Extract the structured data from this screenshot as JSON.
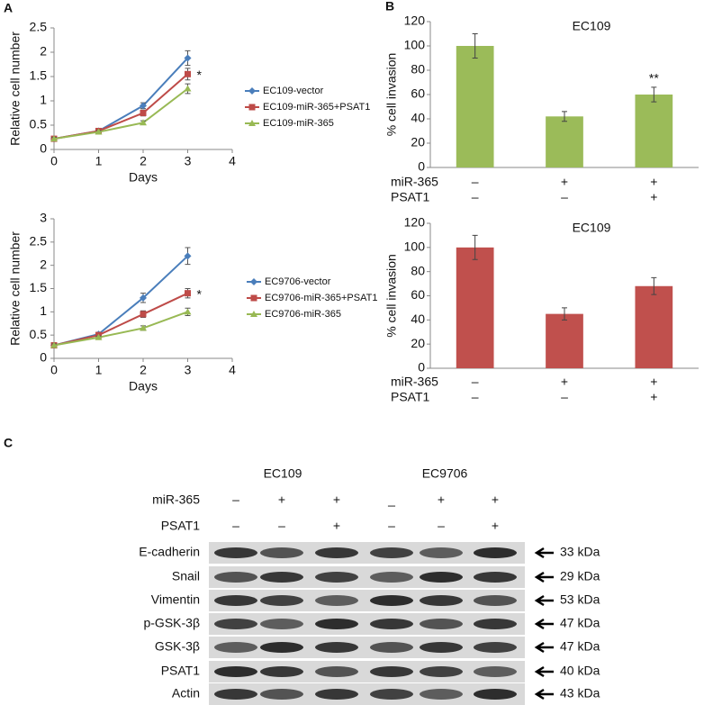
{
  "panel_labels": [
    "A",
    "B",
    "C"
  ],
  "chart_data": [
    {
      "type": "line",
      "x_label": "Days",
      "y_label": "Relative cell number",
      "annotations": [
        "*"
      ],
      "x": [
        0,
        1,
        2,
        3
      ],
      "xlim": [
        0,
        4
      ],
      "xticks": [
        0,
        1,
        2,
        3,
        4
      ],
      "ylim": [
        0,
        2.5
      ],
      "yticks": [
        0,
        0.5,
        1,
        1.5,
        2,
        2.5
      ],
      "series": [
        {
          "name": "EC109-vector",
          "color": "#4a7ebb",
          "values": [
            0.22,
            0.38,
            0.9,
            1.88
          ],
          "errors": [
            0.03,
            0.03,
            0.06,
            0.15
          ]
        },
        {
          "name": "EC109-miR-365+PSAT1",
          "color": "#be4b48",
          "values": [
            0.22,
            0.38,
            0.75,
            1.55
          ],
          "errors": [
            0.03,
            0.03,
            0.06,
            0.12
          ]
        },
        {
          "name": "EC109-miR-365",
          "color": "#98b954",
          "values": [
            0.22,
            0.36,
            0.55,
            1.25
          ],
          "errors": [
            0.03,
            0.03,
            0.04,
            0.1
          ]
        }
      ]
    },
    {
      "type": "line",
      "x_label": "Days",
      "y_label": "Relative cell number",
      "annotations": [
        "*"
      ],
      "x": [
        0,
        1,
        2,
        3
      ],
      "xlim": [
        0,
        4
      ],
      "xticks": [
        0,
        1,
        2,
        3,
        4
      ],
      "ylim": [
        0,
        3
      ],
      "yticks": [
        0,
        0.5,
        1,
        1.5,
        2,
        2.5,
        3
      ],
      "series": [
        {
          "name": "EC9706-vector",
          "color": "#4a7ebb",
          "values": [
            0.28,
            0.52,
            1.3,
            2.2
          ],
          "errors": [
            0.03,
            0.04,
            0.1,
            0.18
          ]
        },
        {
          "name": "EC9706-miR-365+PSAT1",
          "color": "#be4b48",
          "values": [
            0.28,
            0.5,
            0.95,
            1.4
          ],
          "errors": [
            0.03,
            0.03,
            0.07,
            0.1
          ]
        },
        {
          "name": "EC9706-miR-365",
          "color": "#98b954",
          "values": [
            0.28,
            0.45,
            0.65,
            1.0
          ],
          "errors": [
            0.03,
            0.03,
            0.05,
            0.08
          ]
        }
      ]
    },
    {
      "type": "bar",
      "title": "EC109",
      "y_label": "% cell invasion",
      "annotations": [
        "**"
      ],
      "values": [
        100,
        42,
        60
      ],
      "errors": [
        10,
        4,
        6
      ],
      "color": "#9bbb59",
      "ylim": [
        0,
        120
      ],
      "yticks": [
        0,
        20,
        40,
        60,
        80,
        100,
        120
      ],
      "conditions": [
        {
          "label": "miR-365",
          "signs": [
            "–",
            "+",
            "+"
          ]
        },
        {
          "label": "PSAT1",
          "signs": [
            "–",
            "–",
            "+"
          ]
        }
      ]
    },
    {
      "type": "bar",
      "title": "EC109",
      "y_label": "% cell invasion",
      "values": [
        100,
        45,
        68
      ],
      "errors": [
        10,
        5,
        7
      ],
      "color": "#c0504d",
      "ylim": [
        0,
        120
      ],
      "yticks": [
        0,
        20,
        40,
        60,
        80,
        100,
        120
      ],
      "conditions": [
        {
          "label": "miR-365",
          "signs": [
            "–",
            "+",
            "+"
          ]
        },
        {
          "label": "PSAT1",
          "signs": [
            "–",
            "–",
            "+"
          ]
        }
      ]
    }
  ],
  "blot": {
    "groups": [
      "EC109",
      "EC9706"
    ],
    "conditions": [
      {
        "label": "miR-365",
        "signs": [
          "–",
          "+",
          "+",
          "_",
          "+",
          "+"
        ]
      },
      {
        "label": "PSAT1",
        "signs": [
          "–",
          "–",
          "+",
          "–",
          "–",
          "+"
        ]
      }
    ],
    "rows": [
      {
        "label": "E-cadherin",
        "size": "33 kDa"
      },
      {
        "label": "Snail",
        "size": "29 kDa"
      },
      {
        "label": "Vimentin",
        "size": "53 kDa"
      },
      {
        "label": "p-GSK-3β",
        "size": "47 kDa"
      },
      {
        "label": "GSK-3β",
        "size": "47 kDa"
      },
      {
        "label": "PSAT1",
        "size": "40 kDa"
      },
      {
        "label": "Actin",
        "size": "43 kDa"
      }
    ]
  }
}
